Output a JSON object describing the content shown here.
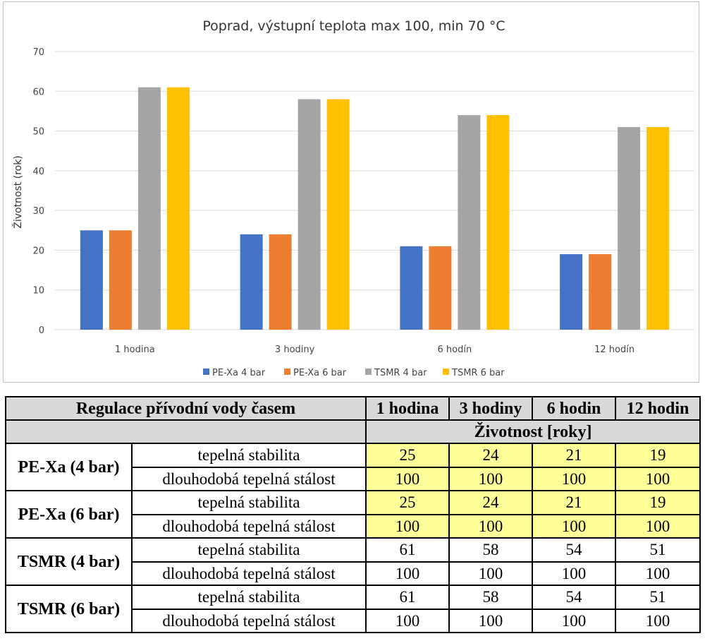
{
  "colors": {
    "pe_xa_4": "#4472c4",
    "pe_xa_6": "#ed7d31",
    "tsmr_4": "#a5a5a5",
    "tsmr_6": "#ffc000",
    "table_header": "#d9d9d9",
    "table_highlight": "#ffff99"
  },
  "chart_data": {
    "type": "bar",
    "title": "Poprad, výstupní teplota max 100, min 70 °C",
    "xlabel": "",
    "ylabel": "Životnost (rok)",
    "categories": [
      "1 hodina",
      "3 hodiny",
      "6 hodín",
      "12 hodín"
    ],
    "series": [
      {
        "name": "PE-Xa 4 bar",
        "values": [
          25,
          24,
          21,
          19
        ],
        "color": "#4472c4"
      },
      {
        "name": "PE-Xa 6 bar",
        "values": [
          25,
          24,
          21,
          19
        ],
        "color": "#ed7d31"
      },
      {
        "name": "TSMR 4 bar",
        "values": [
          61,
          58,
          54,
          51
        ],
        "color": "#a5a5a5"
      },
      {
        "name": "TSMR 6 bar",
        "values": [
          61,
          58,
          54,
          51
        ],
        "color": "#ffc000"
      }
    ],
    "yticks": [
      0,
      10,
      20,
      30,
      40,
      50,
      60,
      70
    ],
    "ylim": [
      0,
      70
    ],
    "grid": true,
    "legend": "bottom"
  },
  "table": {
    "title": "Regulace přívodní vody časem",
    "columns": [
      "1 hodina",
      "3 hodiny",
      "6 hodin",
      "12 hodin"
    ],
    "subheader": "Životnost  [roky]",
    "groups": [
      {
        "name": "PE-Xa (4 bar)",
        "highlight": true,
        "rows": [
          {
            "label": "tepelná stabilita",
            "values": [
              "25",
              "24",
              "21",
              "19"
            ]
          },
          {
            "label": "dlouhodobá tepelná stálost",
            "values": [
              "100",
              "100",
              "100",
              "100"
            ]
          }
        ]
      },
      {
        "name": "PE-Xa (6 bar)",
        "highlight": true,
        "rows": [
          {
            "label": "tepelná stabilita",
            "values": [
              "25",
              "24",
              "21",
              "19"
            ]
          },
          {
            "label": "dlouhodobá tepelná stálost",
            "values": [
              "100",
              "100",
              "100",
              "100"
            ]
          }
        ]
      },
      {
        "name": "TSMR (4 bar)",
        "highlight": false,
        "rows": [
          {
            "label": "tepelná stabilita",
            "values": [
              "61",
              "58",
              "54",
              "51"
            ]
          },
          {
            "label": "dlouhodobá tepelná stálost",
            "values": [
              "100",
              "100",
              "100",
              "100"
            ]
          }
        ]
      },
      {
        "name": "TSMR (6 bar)",
        "highlight": false,
        "rows": [
          {
            "label": "tepelná stabilita",
            "values": [
              "61",
              "58",
              "54",
              "51"
            ]
          },
          {
            "label": "dlouhodobá tepelná stálost",
            "values": [
              "100",
              "100",
              "100",
              "100"
            ]
          }
        ]
      }
    ]
  }
}
